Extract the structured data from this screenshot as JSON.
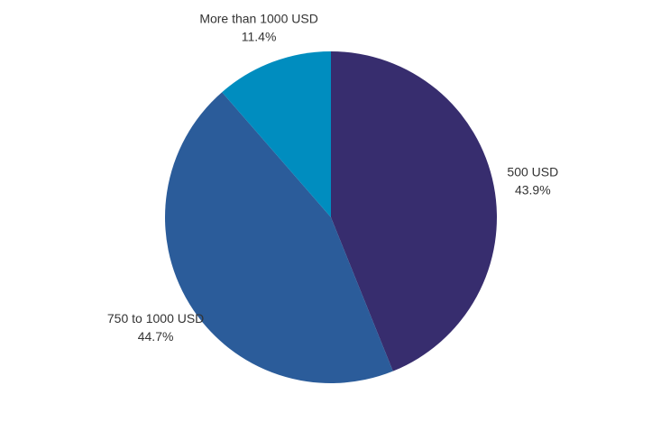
{
  "chart_data": {
    "type": "pie",
    "slices": [
      {
        "label": "500 USD",
        "value": 43.9,
        "value_label": "43.9%",
        "color": "#372d6e"
      },
      {
        "label": "750 to 1000 USD",
        "value": 44.7,
        "value_label": "44.7%",
        "color": "#2b5c9a"
      },
      {
        "label": "More than 1000 USD",
        "value": 11.4,
        "value_label": "11.4%",
        "color": "#008dbf"
      }
    ],
    "start_angle_deg": 0,
    "direction": "clockwise"
  }
}
